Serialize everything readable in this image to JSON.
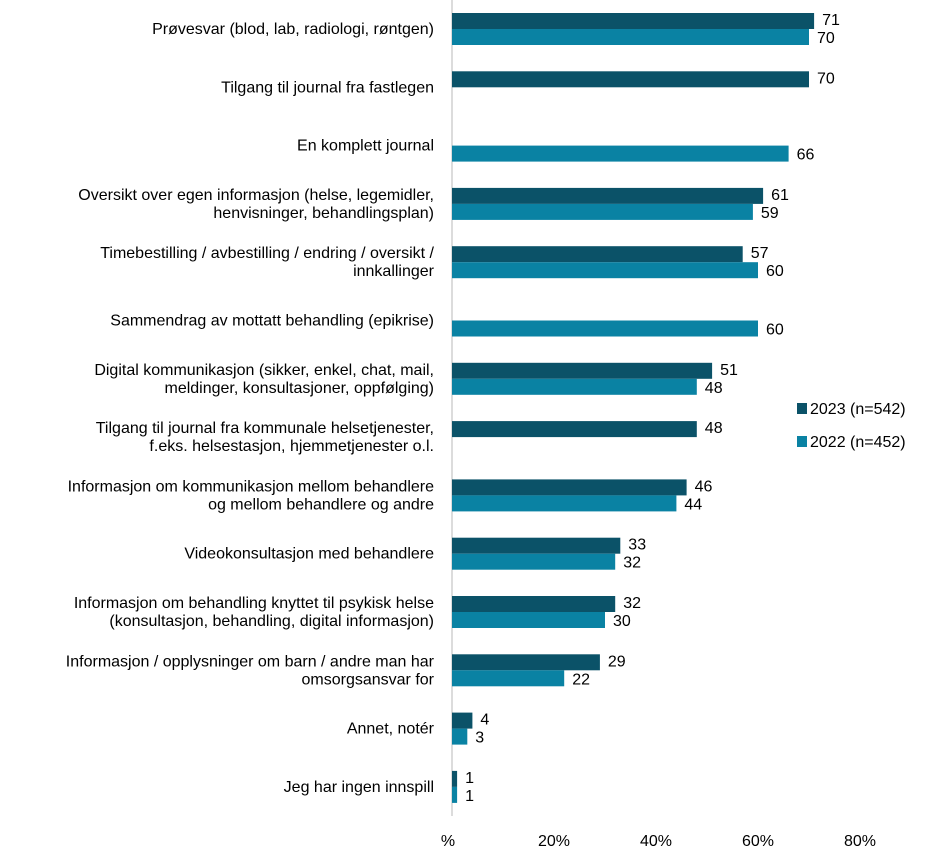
{
  "chart_data": {
    "type": "bar",
    "orientation": "horizontal",
    "title": "",
    "xlabel": "",
    "ylabel": "",
    "xlim": [
      0,
      80
    ],
    "xticks": [
      "%",
      "20%",
      "40%",
      "60%",
      "80%"
    ],
    "grid": false,
    "legend_position": "right",
    "categories": [
      [
        "Prøvesvar (blod, lab, radiologi, røntgen)"
      ],
      [
        "Tilgang til journal fra fastlegen"
      ],
      [
        "En komplett journal"
      ],
      [
        "Oversikt over egen informasjon (helse, legemidler,",
        "henvisninger, behandlingsplan)"
      ],
      [
        "Timebestilling / avbestilling / endring / oversikt /",
        "innkallinger"
      ],
      [
        "Sammendrag av mottatt behandling (epikrise)"
      ],
      [
        "Digital kommunikasjon (sikker, enkel, chat, mail,",
        "meldinger, konsultasjoner, oppfølging)"
      ],
      [
        "Tilgang til journal fra kommunale helsetjenester,",
        "f.eks. helsestasjon, hjemmetjenester o.l."
      ],
      [
        "Informasjon om kommunikasjon mellom behandlere",
        "og mellom behandlere og andre"
      ],
      [
        "Videokonsultasjon med behandlere"
      ],
      [
        "Informasjon om behandling knyttet til psykisk helse",
        "(konsultasjon, behandling, digital informasjon)"
      ],
      [
        "Informasjon / opplysninger om barn / andre man har",
        "omsorgsansvar for"
      ],
      [
        "Annet, notér"
      ],
      [
        "Jeg har ingen innspill"
      ]
    ],
    "series": [
      {
        "name": "2023 (n=542)",
        "color": "#0b5268",
        "values": [
          71,
          70,
          null,
          61,
          57,
          null,
          51,
          48,
          46,
          33,
          32,
          29,
          4,
          1
        ]
      },
      {
        "name": "2022 (n=452)",
        "color": "#0a82a3",
        "values": [
          70,
          null,
          66,
          59,
          60,
          60,
          48,
          null,
          44,
          32,
          30,
          22,
          3,
          1
        ]
      }
    ]
  }
}
